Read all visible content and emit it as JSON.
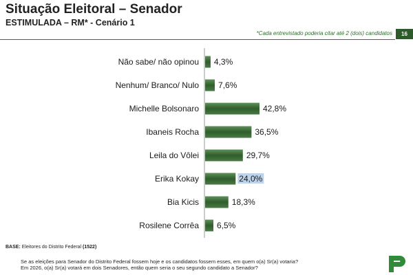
{
  "header": {
    "title": "Situação Eleitoral – Senador",
    "subtitle": "ESTIMULADA – RM* - Cenário 1",
    "note": "*Cada entrevistado poderia citar até 2 (dois) candidatos",
    "page_number": "16"
  },
  "chart_data": {
    "type": "bar",
    "orientation": "horizontal",
    "categories": [
      "Não sabe/ não opinou",
      "Nenhum/ Branco/ Nulo",
      "Michelle Bolsonaro",
      "Ibaneis Rocha",
      "Leila do Vôlei",
      "Erika Kokay",
      "Bia Kicis",
      "Rosilene Corrêa"
    ],
    "values": [
      4.3,
      7.6,
      42.8,
      36.5,
      29.7,
      24.0,
      18.3,
      6.5
    ],
    "value_labels": [
      "4,3%",
      "7,6%",
      "42,8%",
      "36,5%",
      "29,7%",
      "24,0%",
      "18,3%",
      "6,5%"
    ],
    "highlighted_index": 5,
    "bar_color": "#3b6b38",
    "highlight_color": "#bcd3ea",
    "grid": false
  },
  "footer": {
    "base_label": "BASE:",
    "base_text": " Eleitores do Distrito Federal ",
    "base_count": "(1522)",
    "question_line1": "Se as eleições para Senador do Distrito Federal fossem hoje e os candidatos fossem esses, em quem o(a) Sr(a) votaria?",
    "question_line2": "Em 2026, o(a) Sr(a) votará em dois Senadores, então quem seria o seu segundo candidato a Senador?"
  }
}
